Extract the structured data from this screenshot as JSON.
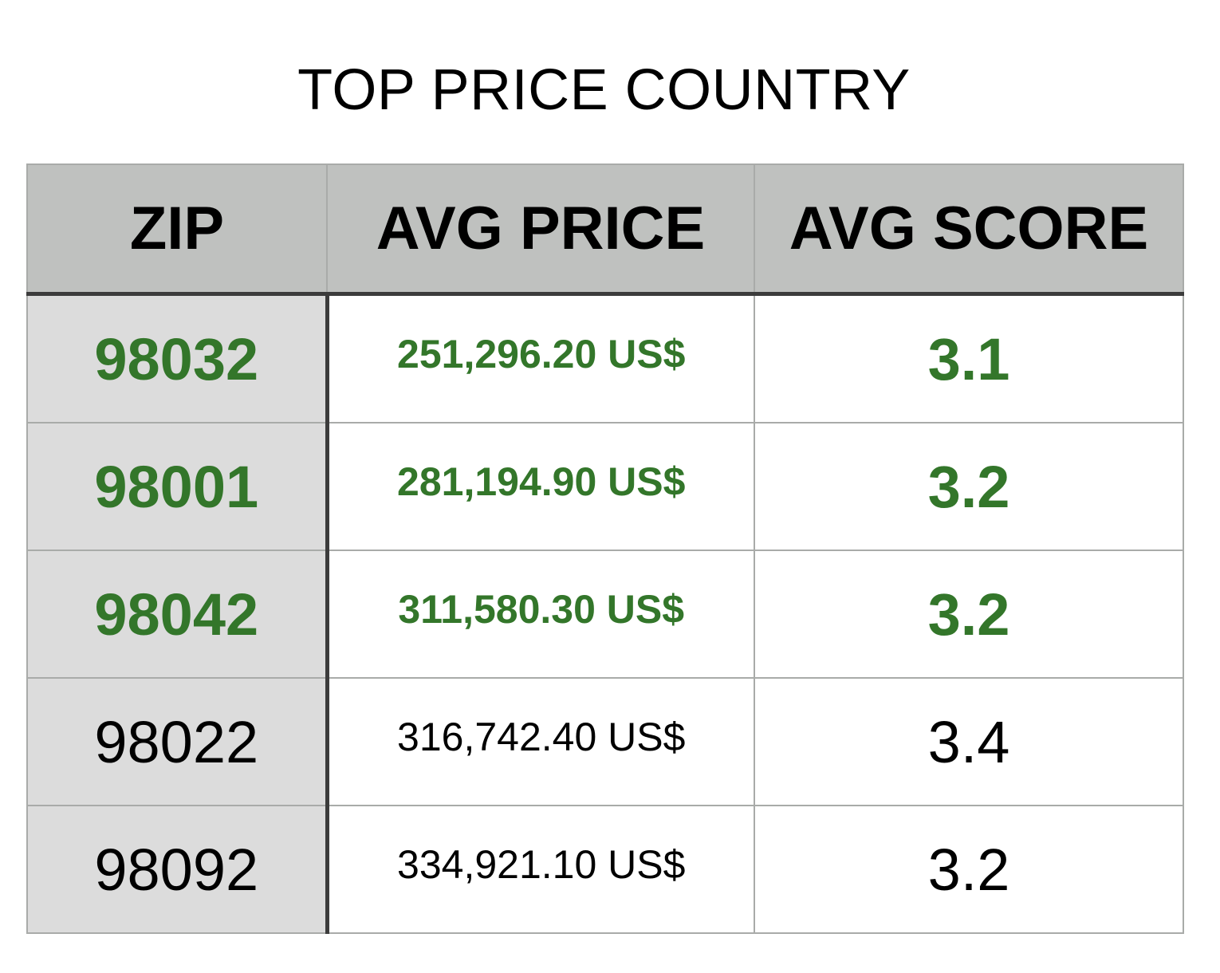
{
  "title": "TOP PRICE COUNTRY",
  "columns": [
    "ZIP",
    "AVG PRICE",
    "AVG SCORE"
  ],
  "highlight_color": "#33762a",
  "header_background": "#bfc1bf",
  "zip_column_background": "#dcdcdc",
  "rows": [
    {
      "zip": "98032",
      "avg_price": "251,296.20 US$",
      "avg_score": "3.1",
      "highlighted": true
    },
    {
      "zip": "98001",
      "avg_price": "281,194.90 US$",
      "avg_score": "3.2",
      "highlighted": true
    },
    {
      "zip": "98042",
      "avg_price": "311,580.30 US$",
      "avg_score": "3.2",
      "highlighted": true
    },
    {
      "zip": "98022",
      "avg_price": "316,742.40 US$",
      "avg_score": "3.4",
      "highlighted": false
    },
    {
      "zip": "98092",
      "avg_price": "334,921.10 US$",
      "avg_score": "3.2",
      "highlighted": false
    }
  ],
  "chart_data": {
    "type": "table",
    "title": "TOP PRICE COUNTRY",
    "columns": [
      "ZIP",
      "AVG PRICE",
      "AVG SCORE"
    ],
    "rows": [
      [
        "98032",
        "251,296.20 US$",
        "3.1"
      ],
      [
        "98001",
        "281,194.90 US$",
        "3.2"
      ],
      [
        "98042",
        "311,580.30 US$",
        "3.2"
      ],
      [
        "98022",
        "316,742.40 US$",
        "3.4"
      ],
      [
        "98092",
        "334,921.10 US$",
        "3.2"
      ]
    ],
    "highlighted_rows": [
      0,
      1,
      2
    ]
  }
}
